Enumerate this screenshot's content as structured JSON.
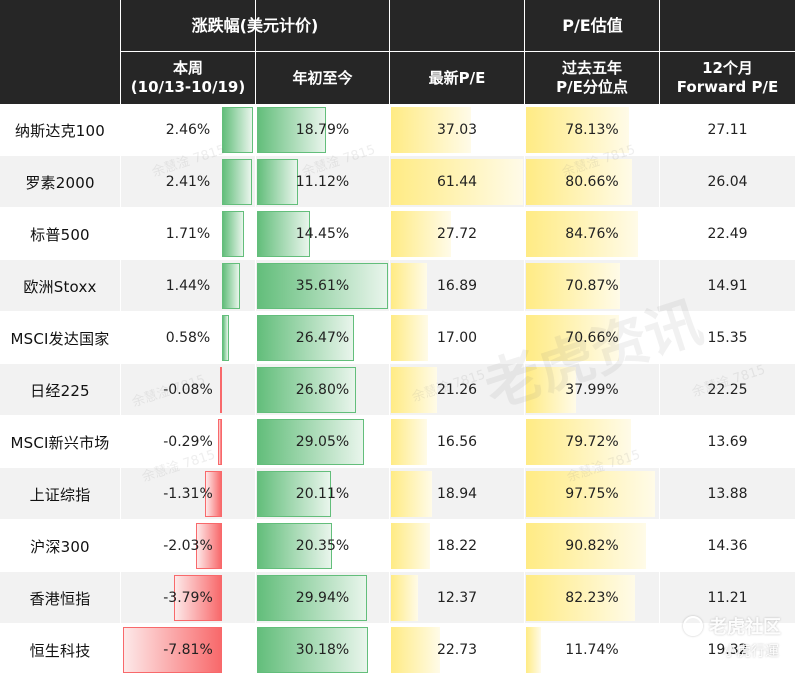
{
  "header": {
    "group_change": "涨跌幅(美元计价)",
    "group_pe": "P/E估值",
    "col_week": "本周\n(10/13-10/19)",
    "col_ytd": "年初至今",
    "col_pe": "最新P/E",
    "col_pct": "过去五年\nP/E分位点",
    "col_fwd": "12个月\nForward P/E"
  },
  "rows": [
    {
      "name": "纳斯达克100",
      "week": "2.46%",
      "ytd": "18.79%",
      "pe": "37.03",
      "pct": "78.13%",
      "fwd": "27.11"
    },
    {
      "name": "罗素2000",
      "week": "2.41%",
      "ytd": "11.12%",
      "pe": "61.44",
      "pct": "80.66%",
      "fwd": "26.04"
    },
    {
      "name": "标普500",
      "week": "1.71%",
      "ytd": "14.45%",
      "pe": "27.72",
      "pct": "84.76%",
      "fwd": "22.49"
    },
    {
      "name": "欧洲Stoxx",
      "week": "1.44%",
      "ytd": "35.61%",
      "pe": "16.89",
      "pct": "70.87%",
      "fwd": "14.91"
    },
    {
      "name": "MSCI发达国家",
      "week": "0.58%",
      "ytd": "26.47%",
      "pe": "17.00",
      "pct": "70.66%",
      "fwd": "15.35"
    },
    {
      "name": "日经225",
      "week": "-0.08%",
      "ytd": "26.80%",
      "pe": "21.26",
      "pct": "37.99%",
      "fwd": "22.25"
    },
    {
      "name": "MSCI新兴市场",
      "week": "-0.29%",
      "ytd": "29.05%",
      "pe": "16.56",
      "pct": "79.72%",
      "fwd": "13.69"
    },
    {
      "name": "上证综指",
      "week": "-1.31%",
      "ytd": "20.11%",
      "pe": "18.94",
      "pct": "97.75%",
      "fwd": "13.88"
    },
    {
      "name": "沪深300",
      "week": "-2.03%",
      "ytd": "20.35%",
      "pe": "18.22",
      "pct": "90.82%",
      "fwd": "14.36"
    },
    {
      "name": "香港恒指",
      "week": "-3.79%",
      "ytd": "29.94%",
      "pe": "12.37",
      "pct": "82.23%",
      "fwd": "11.21"
    },
    {
      "name": "恒生科技",
      "week": "-7.81%",
      "ytd": "30.18%",
      "pe": "22.73",
      "pct": "11.74%",
      "fwd": "19.32"
    }
  ],
  "colors": {
    "header_bg": "#262626",
    "positive_bar": "#63be7b",
    "negative_bar": "#f8696b",
    "pe_bar": "#ffeb84"
  },
  "watermarks": {
    "big": "老虎资讯",
    "small": "余慧淦 7815",
    "brand": "老虎社区",
    "brand_sub": "小虎行運"
  }
}
